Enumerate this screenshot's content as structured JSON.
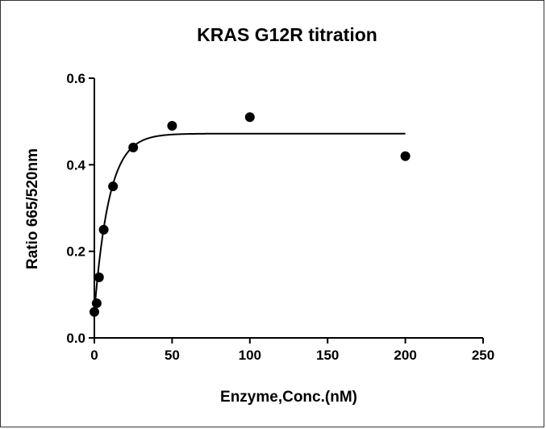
{
  "chart_data": {
    "type": "scatter",
    "title": "KRAS G12R titration",
    "xlabel": "Enzyme,Conc.(nM)",
    "ylabel": "Ratio 665/520nm",
    "xlim": [
      0,
      250
    ],
    "ylim": [
      0,
      0.6
    ],
    "xticks": [
      0,
      50,
      100,
      150,
      200,
      250
    ],
    "yticks": [
      0.0,
      0.2,
      0.4,
      0.6
    ],
    "ytick_labels": [
      "0.0",
      "0.2",
      "0.4",
      "0.6"
    ],
    "grid": false,
    "series": [
      {
        "points": [
          {
            "x": 0,
            "y": 0.06
          },
          {
            "x": 1.5,
            "y": 0.08
          },
          {
            "x": 3,
            "y": 0.14
          },
          {
            "x": 6,
            "y": 0.25
          },
          {
            "x": 12,
            "y": 0.35
          },
          {
            "x": 25,
            "y": 0.44
          },
          {
            "x": 50,
            "y": 0.49
          },
          {
            "x": 100,
            "y": 0.51
          },
          {
            "x": 200,
            "y": 0.42
          }
        ],
        "fit": {
          "model": "one-site saturation",
          "ymin": 0.06,
          "ymax": 0.472,
          "k": 9.5,
          "x_range": [
            0,
            200
          ]
        },
        "color": "#000000"
      }
    ]
  }
}
